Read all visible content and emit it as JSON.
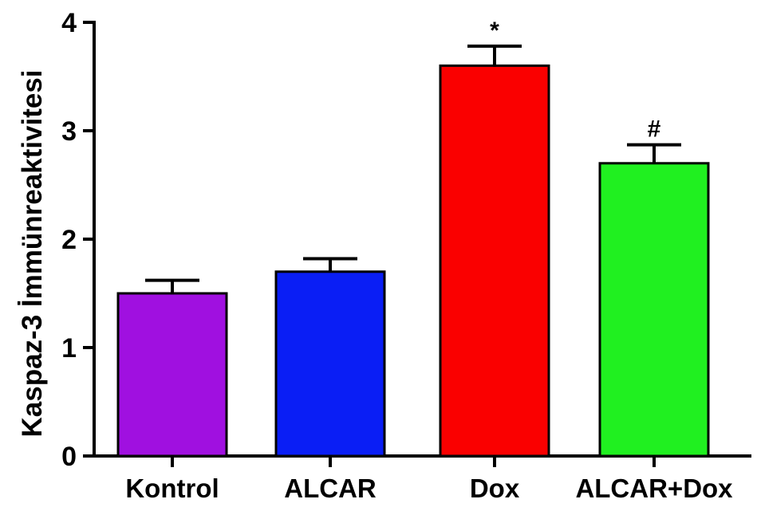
{
  "chart_data": {
    "type": "bar",
    "title": "",
    "xlabel": "",
    "ylabel": "Kaspaz-3 İmmünreaktivitesi",
    "ylim": [
      0,
      4
    ],
    "yticks": [
      "0",
      "1",
      "2",
      "3",
      "4"
    ],
    "categories": [
      "Kontrol",
      "ALCAR",
      "Dox",
      "ALCAR+Dox"
    ],
    "values": [
      1.5,
      1.7,
      3.6,
      2.7
    ],
    "errors": [
      0.12,
      0.12,
      0.18,
      0.17
    ],
    "colors": [
      "#a010e0",
      "#0a1ef5",
      "#fa0000",
      "#20f020"
    ],
    "annotations": [
      "",
      "",
      "*",
      "#"
    ],
    "grid": false,
    "legend": "none"
  }
}
